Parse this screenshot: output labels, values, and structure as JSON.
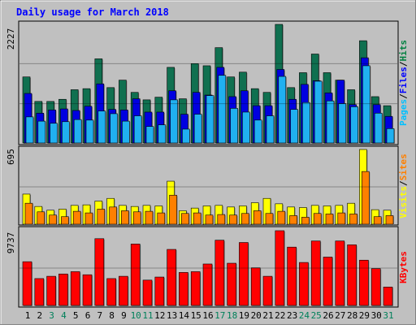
{
  "chart_data": [
    {
      "type": "bar",
      "title": "Daily usage for March 2018",
      "categories": [
        "1",
        "2",
        "3",
        "4",
        "5",
        "6",
        "7",
        "8",
        "9",
        "10",
        "11",
        "12",
        "13",
        "14",
        "15",
        "16",
        "17",
        "18",
        "19",
        "20",
        "21",
        "22",
        "23",
        "24",
        "25",
        "26",
        "27",
        "28",
        "29",
        "30",
        "31"
      ],
      "weekend_days": [
        "3",
        "4",
        "10",
        "11",
        "17",
        "18",
        "24",
        "25",
        "31"
      ],
      "ymax_label": "2227",
      "ylim": [
        0,
        2227
      ],
      "legend": [
        {
          "label": "Pages",
          "color": "#00c0ff"
        },
        {
          "label": "Files",
          "color": "#0000ff"
        },
        {
          "label": "Hits",
          "color": "#008040"
        }
      ],
      "series": [
        {
          "name": "Hits",
          "color": "#107050",
          "values": [
            1240,
            780,
            780,
            820,
            1000,
            1020,
            1580,
            1040,
            1180,
            950,
            810,
            860,
            1420,
            830,
            1490,
            1450,
            1790,
            1240,
            1330,
            1020,
            950,
            2227,
            1040,
            1320,
            1670,
            1320,
            1180,
            1000,
            1920,
            870,
            700
          ]
        },
        {
          "name": "Files",
          "color": "#0000e0",
          "values": [
            930,
            560,
            620,
            640,
            610,
            690,
            1110,
            630,
            620,
            830,
            580,
            580,
            980,
            540,
            950,
            900,
            1420,
            870,
            980,
            700,
            700,
            1380,
            820,
            1100,
            1170,
            940,
            1180,
            720,
            1600,
            720,
            500
          ]
        },
        {
          "name": "Pages",
          "color": "#20b0f0",
          "values": [
            490,
            410,
            370,
            400,
            440,
            430,
            600,
            550,
            410,
            510,
            310,
            340,
            810,
            260,
            540,
            890,
            1270,
            650,
            580,
            430,
            510,
            1250,
            630,
            760,
            1160,
            790,
            740,
            680,
            1450,
            560,
            270
          ]
        }
      ]
    },
    {
      "type": "bar",
      "ymax_label": "695",
      "ylim": [
        0,
        695
      ],
      "legend": [
        {
          "label": "Visits",
          "color": "#ffff00"
        },
        {
          "label": "Sites",
          "color": "#ff8000"
        }
      ],
      "series": [
        {
          "name": "Visits",
          "color": "#ffff00",
          "values": [
            280,
            165,
            130,
            140,
            175,
            180,
            215,
            240,
            175,
            165,
            175,
            170,
            400,
            125,
            150,
            170,
            175,
            160,
            170,
            200,
            240,
            190,
            160,
            155,
            175,
            170,
            175,
            195,
            695,
            135,
            130
          ]
        },
        {
          "name": "Sites",
          "color": "#ff8000",
          "values": [
            195,
            115,
            85,
            70,
            120,
            105,
            140,
            160,
            125,
            115,
            120,
            105,
            270,
            100,
            105,
            85,
            90,
            85,
            100,
            125,
            100,
            120,
            80,
            65,
            100,
            95,
            105,
            95,
            490,
            70,
            80
          ]
        }
      ]
    },
    {
      "type": "bar",
      "ymax_label": "9737",
      "ylim": [
        0,
        9737
      ],
      "legend": [
        {
          "label": "KBytes",
          "color": "#ff0000"
        }
      ],
      "series": [
        {
          "name": "KBytes",
          "color": "#ff0000",
          "values": [
            5700,
            3500,
            3800,
            4100,
            4400,
            4000,
            8700,
            3500,
            3800,
            8000,
            3300,
            3700,
            7300,
            4300,
            4400,
            5400,
            8500,
            5500,
            8200,
            4900,
            3800,
            9737,
            7600,
            5600,
            8400,
            6300,
            8400,
            7900,
            5900,
            4800,
            2400
          ]
        }
      ]
    }
  ]
}
